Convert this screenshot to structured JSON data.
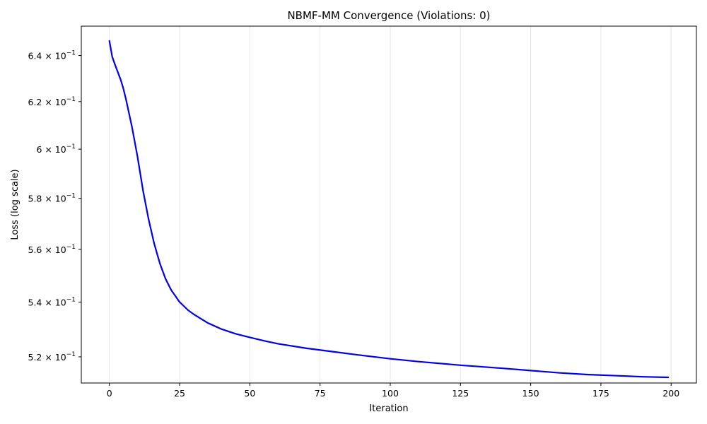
{
  "chart_data": {
    "type": "line",
    "title": "NBMF-MM Convergence (Violations: 0)",
    "xlabel": "Iteration",
    "ylabel": "Loss (log scale)",
    "yscale": "log",
    "xlim": [
      -10,
      209
    ],
    "ylim": [
      0.5107,
      0.6531
    ],
    "grid": "vertical",
    "x_ticks": [
      0,
      25,
      50,
      75,
      100,
      125,
      150,
      175,
      200
    ],
    "x_tick_labels": [
      "0",
      "25",
      "50",
      "75",
      "100",
      "125",
      "150",
      "175",
      "200"
    ],
    "y_ticks": [
      0.52,
      0.54,
      0.56,
      0.58,
      0.6,
      0.62,
      0.64
    ],
    "y_tick_labels": [
      {
        "mantissa": "5.2",
        "base": "10",
        "exp": "−1"
      },
      {
        "mantissa": "5.4",
        "base": "10",
        "exp": "−1"
      },
      {
        "mantissa": "5.6",
        "base": "10",
        "exp": "−1"
      },
      {
        "mantissa": "5.8",
        "base": "10",
        "exp": "−1"
      },
      {
        "mantissa": "6",
        "base": "10",
        "exp": "−1"
      },
      {
        "mantissa": "6.2",
        "base": "10",
        "exp": "−1"
      },
      {
        "mantissa": "6.4",
        "base": "10",
        "exp": "−1"
      }
    ],
    "series": [
      {
        "color": "#0000ee",
        "x": [
          0,
          1,
          2,
          4,
          5,
          6,
          8,
          10,
          12,
          14,
          16,
          18,
          20,
          22,
          25,
          28,
          30,
          35,
          40,
          45,
          50,
          55,
          60,
          70,
          80,
          90,
          100,
          110,
          125,
          140,
          150,
          160,
          170,
          180,
          190,
          199
        ],
        "y": [
          0.6465,
          0.6395,
          0.636,
          0.6295,
          0.6255,
          0.6205,
          0.6095,
          0.597,
          0.583,
          0.5715,
          0.562,
          0.5545,
          0.5487,
          0.5445,
          0.54,
          0.537,
          0.5355,
          0.5323,
          0.53,
          0.5283,
          0.527,
          0.5258,
          0.5247,
          0.5231,
          0.5218,
          0.5205,
          0.5193,
          0.5183,
          0.517,
          0.5159,
          0.5151,
          0.5143,
          0.5137,
          0.5133,
          0.5129,
          0.5127
        ]
      }
    ]
  }
}
